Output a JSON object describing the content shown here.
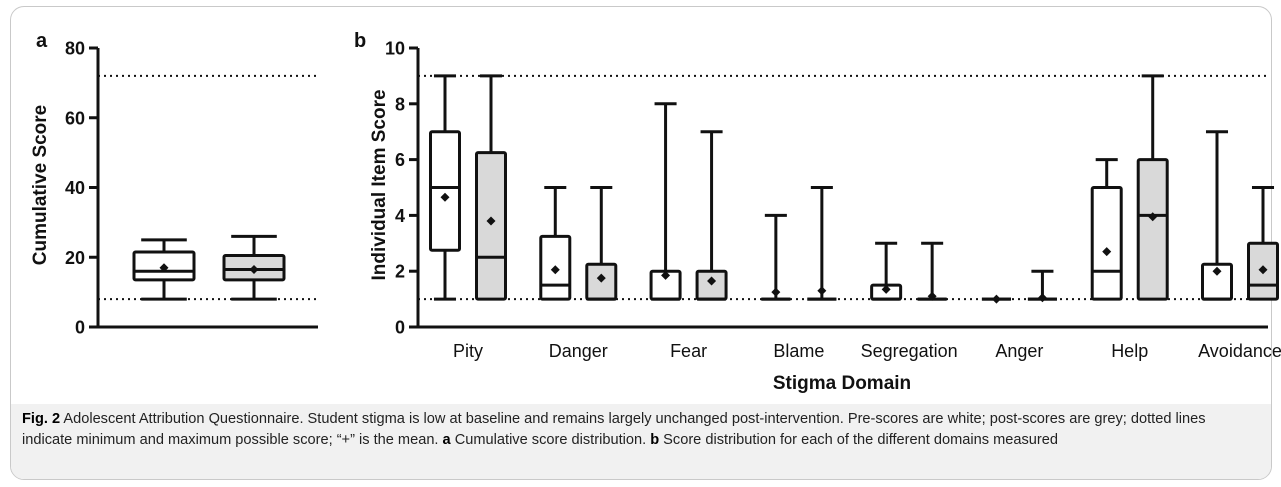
{
  "figure": {
    "caption": {
      "label": "Fig. 2",
      "text": " Adolescent Attribution Questionnaire. Student stigma is low at baseline and remains largely unchanged post-intervention. Pre-scores are white; post-scores are grey; dotted lines indicate minimum and maximum possible score; “+” is the mean. ",
      "part_a_letter": "a",
      "part_a_text": " Cumulative score distribution. ",
      "part_b_letter": "b",
      "part_b_text": " Score distribution for each of the different domains measured"
    }
  },
  "chart_data": [
    {
      "type": "box",
      "panel_letter": "a",
      "title": "",
      "xlabel": "",
      "ylabel": "Cumulative Score",
      "ylim": [
        0,
        80
      ],
      "yticks": [
        0,
        20,
        40,
        60,
        80
      ],
      "reference_lines": [
        8,
        72
      ],
      "colors": {
        "pre": "#ffffff",
        "post": "#d9d9d9"
      },
      "boxes": [
        {
          "group": "pre",
          "min": 8,
          "q1": 13.5,
          "median": 16,
          "q3": 21.5,
          "max": 25,
          "mean": 17
        },
        {
          "group": "post",
          "min": 8,
          "q1": 13.5,
          "median": 16.5,
          "q3": 20.5,
          "max": 26,
          "mean": 16.5
        }
      ]
    },
    {
      "type": "box",
      "panel_letter": "b",
      "title": "",
      "xlabel": "Stigma Domain",
      "ylabel": "Individual Item Score",
      "ylim": [
        0,
        10
      ],
      "yticks": [
        0,
        2,
        4,
        6,
        8,
        10
      ],
      "reference_lines": [
        1,
        9
      ],
      "categories": [
        "Pity",
        "Danger",
        "Fear",
        "Blame",
        "Segregation",
        "Anger",
        "Help",
        "Avoidance"
      ],
      "colors": {
        "pre": "#ffffff",
        "post": "#d9d9d9"
      },
      "series": [
        {
          "group": "pre",
          "boxes": [
            {
              "min": 1,
              "q1": 2.75,
              "median": 5,
              "q3": 7,
              "max": 9,
              "mean": 4.65
            },
            {
              "min": 1,
              "q1": 1,
              "median": 1.5,
              "q3": 3.25,
              "max": 5,
              "mean": 2.05
            },
            {
              "min": 1,
              "q1": 1,
              "median": 1,
              "q3": 2,
              "max": 8,
              "mean": 1.85
            },
            {
              "min": 1,
              "q1": 1,
              "median": 1,
              "q3": 1,
              "max": 4,
              "mean": 1.25
            },
            {
              "min": 1,
              "q1": 1,
              "median": 1,
              "q3": 1.5,
              "max": 3,
              "mean": 1.35
            },
            {
              "min": 1,
              "q1": 1,
              "median": 1,
              "q3": 1,
              "max": 1,
              "mean": 1
            },
            {
              "min": 1,
              "q1": 1,
              "median": 2,
              "q3": 5,
              "max": 6,
              "mean": 2.7
            },
            {
              "min": 1,
              "q1": 1,
              "median": 1,
              "q3": 2.25,
              "max": 7,
              "mean": 2
            }
          ]
        },
        {
          "group": "post",
          "boxes": [
            {
              "min": 1,
              "q1": 1,
              "median": 2.5,
              "q3": 6.25,
              "max": 9,
              "mean": 3.8
            },
            {
              "min": 1,
              "q1": 1,
              "median": 1,
              "q3": 2.25,
              "max": 5,
              "mean": 1.75
            },
            {
              "min": 1,
              "q1": 1,
              "median": 1,
              "q3": 2,
              "max": 7,
              "mean": 1.65
            },
            {
              "min": 1,
              "q1": 1,
              "median": 1,
              "q3": 1,
              "max": 5,
              "mean": 1.3
            },
            {
              "min": 1,
              "q1": 1,
              "median": 1,
              "q3": 1,
              "max": 3,
              "mean": 1.1
            },
            {
              "min": 1,
              "q1": 1,
              "median": 1,
              "q3": 1,
              "max": 2,
              "mean": 1.05
            },
            {
              "min": 1,
              "q1": 1,
              "median": 4,
              "q3": 6,
              "max": 9,
              "mean": 3.95
            },
            {
              "min": 1,
              "q1": 1,
              "median": 1.5,
              "q3": 3,
              "max": 5,
              "mean": 2.05
            }
          ]
        }
      ]
    }
  ]
}
